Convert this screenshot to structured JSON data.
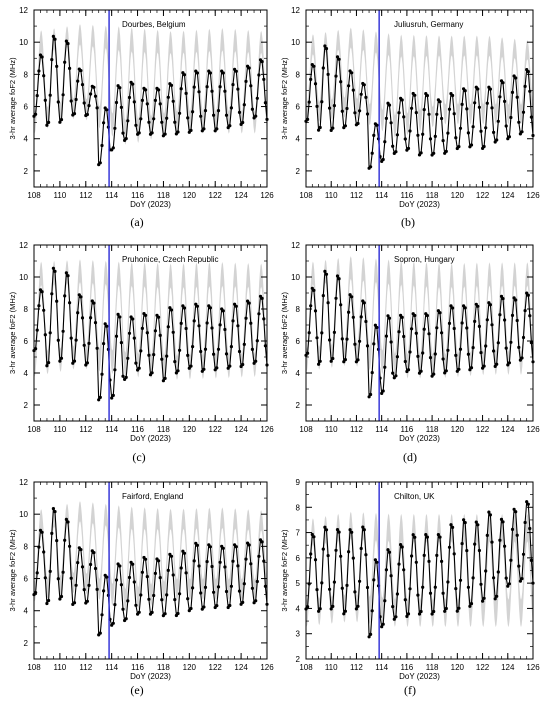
{
  "chart_data": [
    {
      "type": "line",
      "panel": "(a)",
      "station": "Dourbes, Belgium",
      "xlabel": "DoY (2023)",
      "ylabel": "3-hr average foF2 (MHz)",
      "xlim": [
        108,
        126
      ],
      "ylim": [
        1,
        12
      ],
      "xticks": [
        108,
        110,
        112,
        114,
        116,
        118,
        120,
        122,
        124,
        126
      ],
      "yticks": [
        2,
        4,
        6,
        8,
        10,
        12
      ],
      "event_doy": 113.8,
      "median_band": {
        "low": [
          5.0,
          6.0,
          4.3,
          5.0,
          5.0,
          5.0
        ],
        "high": [
          10.0,
          10.5,
          10.2,
          10.0,
          10.2,
          10.0
        ]
      },
      "observed": {
        "day_max": [
          9.3,
          10.5,
          10.2,
          8.4,
          7.3,
          6.0,
          7.4,
          7.6,
          7.2,
          7.2,
          7.5,
          8.2,
          8.3,
          8.3,
          8.3,
          8.4,
          8.6,
          9.0
        ],
        "day_min": [
          5.3,
          4.7,
          4.9,
          5.4,
          5.4,
          2.3,
          3.2,
          3.8,
          4.2,
          4.2,
          4.1,
          4.2,
          4.3,
          4.4,
          4.4,
          4.6,
          4.8,
          5.2
        ]
      }
    },
    {
      "type": "line",
      "panel": "(b)",
      "station": "Juliusruh, Germany",
      "xlabel": "DoY (2023)",
      "ylabel": "3-hr average foF2 (MHz)",
      "xlim": [
        108,
        126
      ],
      "ylim": [
        1,
        12
      ],
      "xticks": [
        108,
        110,
        112,
        114,
        116,
        118,
        120,
        122,
        124,
        126
      ],
      "yticks": [
        2,
        4,
        6,
        8,
        10,
        12
      ],
      "event_doy": 113.8,
      "median_band": {
        "low": [
          5.5,
          6.0,
          4.7,
          5.5,
          5.5,
          5.5
        ],
        "high": [
          9.8,
          10.3,
          9.8,
          9.8,
          9.8,
          9.5
        ]
      },
      "observed": {
        "day_max": [
          8.7,
          9.9,
          9.2,
          8.3,
          7.5,
          5.0,
          6.3,
          6.6,
          6.9,
          6.9,
          6.5,
          6.9,
          7.2,
          7.3,
          7.3,
          7.7,
          8.0,
          8.4
        ],
        "day_min": [
          5.0,
          4.4,
          4.4,
          4.6,
          4.8,
          2.1,
          2.5,
          3.0,
          3.2,
          2.9,
          2.9,
          3.0,
          3.3,
          3.4,
          3.3,
          3.7,
          3.9,
          4.2
        ]
      }
    },
    {
      "type": "line",
      "panel": "(c)",
      "station": "Pruhonice, Czech Republic",
      "xlabel": "DoY (2023)",
      "ylabel": "3-hr average foF2 (MHz)",
      "xlim": [
        108,
        126
      ],
      "ylim": [
        1,
        12
      ],
      "xticks": [
        108,
        110,
        112,
        114,
        116,
        118,
        120,
        122,
        124,
        126
      ],
      "yticks": [
        2,
        4,
        6,
        8,
        10,
        12
      ],
      "event_doy": 113.8,
      "median_band": {
        "low": [
          4.5,
          5.0,
          4.5,
          4.3,
          4.4,
          4.5
        ],
        "high": [
          10.2,
          10.4,
          10.2,
          10.1,
          10.2,
          10.1
        ]
      },
      "observed": {
        "day_max": [
          9.3,
          10.7,
          10.4,
          9.0,
          8.6,
          7.2,
          7.8,
          7.6,
          7.8,
          7.7,
          8.2,
          8.3,
          8.4,
          8.3,
          8.1,
          8.4,
          8.6,
          8.9
        ],
        "day_min": [
          5.3,
          4.3,
          4.6,
          4.5,
          4.4,
          2.2,
          2.3,
          3.5,
          4.1,
          3.8,
          3.4,
          3.9,
          4.2,
          4.0,
          4.1,
          4.2,
          4.3,
          4.5
        ]
      }
    },
    {
      "type": "line",
      "panel": "(d)",
      "station": "Sopron, Hungary",
      "xlabel": "DoY (2023)",
      "ylabel": "3-hr average foF2 (MHz)",
      "xlim": [
        108,
        126
      ],
      "ylim": [
        1,
        12
      ],
      "xticks": [
        108,
        110,
        112,
        114,
        116,
        118,
        120,
        122,
        124,
        126
      ],
      "yticks": [
        2,
        4,
        6,
        8,
        10,
        12
      ],
      "event_doy": 113.8,
      "median_band": {
        "low": [
          4.8,
          5.2,
          4.4,
          4.4,
          4.6,
          4.6
        ],
        "high": [
          10.2,
          10.6,
          10.3,
          10.1,
          10.2,
          10.2
        ]
      },
      "observed": {
        "day_max": [
          9.4,
          10.5,
          10.2,
          9.0,
          8.6,
          7.1,
          7.7,
          7.7,
          7.8,
          7.8,
          8.0,
          8.3,
          8.3,
          8.4,
          8.5,
          8.9,
          8.8,
          9.1
        ],
        "day_min": [
          5.0,
          4.4,
          4.6,
          4.6,
          4.6,
          2.4,
          2.6,
          3.6,
          4.0,
          3.9,
          3.7,
          3.9,
          4.0,
          4.1,
          4.2,
          4.3,
          4.4,
          4.7
        ]
      }
    },
    {
      "type": "line",
      "panel": "(e)",
      "station": "Fairford, England",
      "xlabel": "DoY (2023)",
      "ylabel": "3-hr average foF2 (MHz)",
      "xlim": [
        108,
        126
      ],
      "ylim": [
        1,
        12
      ],
      "xticks": [
        108,
        110,
        112,
        114,
        116,
        118,
        120,
        122,
        124,
        126
      ],
      "yticks": [
        2,
        4,
        6,
        8,
        10,
        12
      ],
      "event_doy": 113.8,
      "median_band": {
        "low": [
          5.2,
          5.8,
          4.6,
          5.3,
          5.3,
          5.3
        ],
        "high": [
          9.6,
          10.2,
          9.8,
          9.7,
          9.8,
          9.6
        ]
      },
      "observed": {
        "day_max": [
          9.1,
          10.5,
          9.8,
          8.0,
          7.8,
          6.3,
          7.0,
          7.1,
          7.4,
          7.3,
          7.6,
          7.8,
          8.3,
          8.2,
          8.1,
          8.2,
          8.3,
          8.5
        ],
        "day_min": [
          4.9,
          4.3,
          4.6,
          4.3,
          4.4,
          2.4,
          3.0,
          3.3,
          3.7,
          3.7,
          3.6,
          3.6,
          3.9,
          4.0,
          4.1,
          4.1,
          4.3,
          4.4
        ]
      }
    },
    {
      "type": "line",
      "panel": "(f)",
      "station": "Chilton, UK",
      "xlabel": "DoY (2023)",
      "ylabel": "3-hr average foF2 (MHz)",
      "xlim": [
        108,
        126
      ],
      "ylim": [
        2,
        9
      ],
      "xticks": [
        108,
        110,
        112,
        114,
        116,
        118,
        120,
        122,
        124,
        126
      ],
      "yticks": [
        2,
        3,
        4,
        5,
        6,
        7,
        8,
        9
      ],
      "event_doy": 113.8,
      "median_band": {
        "low": [
          3.8,
          4.0,
          3.8,
          3.8,
          3.8,
          3.8
        ],
        "high": [
          7.0,
          7.3,
          7.2,
          7.2,
          7.2,
          7.2
        ]
      },
      "observed": {
        "day_max": [
          7.0,
          7.3,
          7.2,
          7.2,
          7.3,
          6.0,
          6.4,
          6.6,
          7.0,
          7.0,
          7.0,
          7.4,
          7.6,
          7.5,
          7.9,
          7.6,
          8.0,
          8.3
        ],
        "day_min": [
          3.9,
          3.8,
          3.9,
          3.7,
          3.9,
          2.8,
          3.2,
          3.5,
          3.6,
          3.7,
          3.7,
          3.8,
          3.8,
          4.0,
          4.2,
          4.3,
          4.8,
          5.0
        ]
      }
    }
  ]
}
